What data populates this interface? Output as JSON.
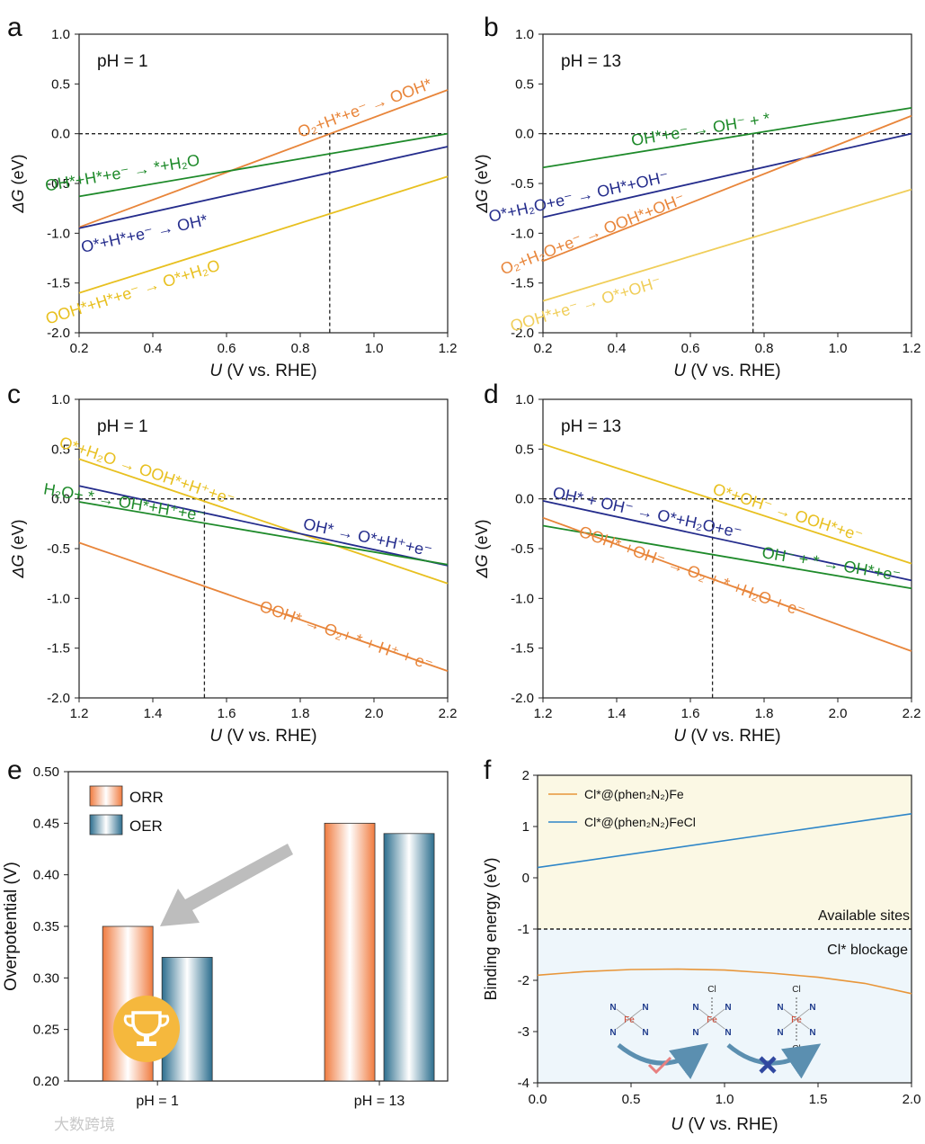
{
  "figure": {
    "watermark": "大数跨境",
    "panels": [
      {
        "id": "a",
        "letter": "a",
        "annotation": "pH = 1",
        "xlabel_italic": "U",
        "xlabel_rest": " (V vs. RHE)",
        "ylabel_italic": "ΔG",
        "ylabel_rest": " (eV)",
        "xlim": [
          0.2,
          1.2
        ],
        "ylim": [
          -2.0,
          1.0
        ],
        "xticks": [
          "0.2",
          "0.4",
          "0.6",
          "0.8",
          "1.0",
          "1.2"
        ],
        "yticks": [
          "-2.0",
          "-1.5",
          "-1.0",
          "-0.5",
          "0.0",
          "0.5",
          "1.0"
        ],
        "hline": 0.0,
        "vline": 0.88,
        "series": [
          {
            "label": "O₂+H*+e⁻ → OOH*",
            "color": "#E8853A",
            "x": [
              0.2,
              1.2
            ],
            "y": [
              -0.94,
              0.44
            ]
          },
          {
            "label": "OH*+H*+e⁻ → *+H₂O",
            "color": "#1E8A2A",
            "x": [
              0.2,
              1.2
            ],
            "y": [
              -0.63,
              0.0
            ]
          },
          {
            "label": "O*+H*+e⁻ → OH*",
            "color": "#242C8C",
            "x": [
              0.2,
              1.2
            ],
            "y": [
              -0.95,
              -0.13
            ]
          },
          {
            "label": "OOH*+H*+e⁻ → O*+H₂O",
            "color": "#E8C020",
            "x": [
              0.2,
              1.2
            ],
            "y": [
              -1.6,
              -0.43
            ]
          }
        ]
      },
      {
        "id": "b",
        "letter": "b",
        "annotation": "pH = 13",
        "xlabel_italic": "U",
        "xlabel_rest": " (V vs. RHE)",
        "ylabel_italic": "ΔG",
        "ylabel_rest": " (eV)",
        "xlim": [
          0.2,
          1.2
        ],
        "ylim": [
          -2.0,
          1.0
        ],
        "xticks": [
          "0.2",
          "0.4",
          "0.6",
          "0.8",
          "1.0",
          "1.2"
        ],
        "yticks": [
          "-2.0",
          "-1.5",
          "-1.0",
          "-0.5",
          "0.0",
          "0.5",
          "1.0"
        ],
        "hline": 0.0,
        "vline": 0.77,
        "series": [
          {
            "label": "OH*+e⁻ → OH⁻ + *",
            "color": "#1E8A2A",
            "x": [
              0.2,
              1.2
            ],
            "y": [
              -0.34,
              0.26
            ]
          },
          {
            "label": "O*+H₂O+e⁻ → OH*+OH⁻",
            "color": "#242C8C",
            "x": [
              0.2,
              1.2
            ],
            "y": [
              -0.84,
              0.0
            ]
          },
          {
            "label": "O₂+H₂O+e⁻ → OOH*+OH⁻",
            "color": "#E8853A",
            "x": [
              0.2,
              1.2
            ],
            "y": [
              -1.28,
              0.18
            ]
          },
          {
            "label": "OOH*+e⁻ → O*+OH⁻",
            "color": "#F0CE5A",
            "x": [
              0.2,
              1.2
            ],
            "y": [
              -1.68,
              -0.56
            ]
          }
        ]
      },
      {
        "id": "c",
        "letter": "c",
        "annotation": "pH = 1",
        "xlabel_italic": "U",
        "xlabel_rest": " (V vs. RHE)",
        "ylabel_italic": "ΔG",
        "ylabel_rest": " (eV)",
        "xlim": [
          1.2,
          2.2
        ],
        "ylim": [
          -2.0,
          1.0
        ],
        "xticks": [
          "1.2",
          "1.4",
          "1.6",
          "1.8",
          "2.0",
          "2.2"
        ],
        "yticks": [
          "-2.0",
          "-1.5",
          "-1.0",
          "-0.5",
          "0.0",
          "0.5",
          "1.0"
        ],
        "hline": 0.0,
        "vline": 1.54,
        "series": [
          {
            "label": "O*+H₂O → OOH*+H⁺+e⁻",
            "color": "#E8C020",
            "x": [
              1.2,
              2.2
            ],
            "y": [
              0.4,
              -0.85
            ]
          },
          {
            "label": "OH* → O*+H⁺+e⁻",
            "color": "#242C8C",
            "x": [
              1.2,
              2.2
            ],
            "y": [
              0.13,
              -0.67
            ]
          },
          {
            "label": "H₂O+ * → OH*+H⁺+e⁻",
            "color": "#1E8A2A",
            "x": [
              1.2,
              2.2
            ],
            "y": [
              -0.03,
              -0.66
            ]
          },
          {
            "label": "OOH* → O₂+ * + H⁺ + e⁻",
            "color": "#E8853A",
            "x": [
              1.2,
              2.2
            ],
            "y": [
              -0.44,
              -1.73
            ]
          }
        ]
      },
      {
        "id": "d",
        "letter": "d",
        "annotation": "pH = 13",
        "xlabel_italic": "U",
        "xlabel_rest": " (V vs. RHE)",
        "ylabel_italic": "ΔG",
        "ylabel_rest": " (eV)",
        "xlim": [
          1.2,
          2.2
        ],
        "ylim": [
          -2.0,
          1.0
        ],
        "xticks": [
          "1.2",
          "1.4",
          "1.6",
          "1.8",
          "2.0",
          "2.2"
        ],
        "yticks": [
          "-2.0",
          "-1.5",
          "-1.0",
          "-0.5",
          "0.0",
          "0.5",
          "1.0"
        ],
        "hline": 0.0,
        "vline": 1.66,
        "series": [
          {
            "label": "O*+OH⁻ → OOH*+e⁻",
            "color": "#E8C020",
            "x": [
              1.2,
              2.2
            ],
            "y": [
              0.55,
              -0.65
            ]
          },
          {
            "label": "OH* + OH⁻ → O*+H₂O+e⁻",
            "color": "#242C8C",
            "x": [
              1.2,
              2.2
            ],
            "y": [
              -0.02,
              -0.82
            ]
          },
          {
            "label": "OH⁻ + * → OH*+e⁻",
            "color": "#1E8A2A",
            "x": [
              1.2,
              2.2
            ],
            "y": [
              -0.27,
              -0.9
            ]
          },
          {
            "label": "OOH* +OH⁻ → O₂ + * +H₂O + e⁻",
            "color": "#E8853A",
            "x": [
              1.2,
              2.2
            ],
            "y": [
              -0.19,
              -1.53
            ]
          }
        ]
      },
      {
        "id": "e",
        "letter": "e",
        "ylabel": "Overpotential (V)",
        "ylim": [
          0.2,
          0.5
        ],
        "yticks": [
          "0.20",
          "0.25",
          "0.30",
          "0.35",
          "0.40",
          "0.45",
          "0.50"
        ],
        "categories": [
          "pH = 1",
          "pH = 13"
        ],
        "legend": [
          "ORR",
          "OER"
        ],
        "series": [
          {
            "name": "ORR",
            "color": "#F07B3F",
            "values": [
              0.35,
              0.45
            ]
          },
          {
            "name": "OER",
            "color": "#2C6E8E",
            "values": [
              0.32,
              0.44
            ]
          }
        ],
        "highlight_icon": "trophy-icon",
        "arrow_icon": "arrow-icon"
      },
      {
        "id": "f",
        "letter": "f",
        "xlabel_italic": "U",
        "xlabel_rest": " (V vs. RHE)",
        "ylabel": "Binding energy (eV)",
        "xlim": [
          0.0,
          2.0
        ],
        "ylim": [
          -4,
          2
        ],
        "xticks": [
          "0.0",
          "0.5",
          "1.0",
          "1.5",
          "2.0"
        ],
        "yticks": [
          "-4",
          "-3",
          "-2",
          "-1",
          "0",
          "1",
          "2"
        ],
        "hline": -1.0,
        "region_top_color": "#FBF8E4",
        "region_bottom_color": "#EEF6FB",
        "region_top_label": "Available sites",
        "region_bottom_label": "Cl* blockage",
        "legend": [
          "Cl*@(phen₂N₂)Fe",
          "Cl*@(phen₂N₂)FeCl"
        ],
        "series": [
          {
            "name": "Cl*@(phen₂N₂)Fe",
            "color": "#E8963A",
            "x": [
              0.0,
              0.25,
              0.5,
              0.75,
              1.0,
              1.25,
              1.5,
              1.75,
              2.0
            ],
            "y": [
              -1.9,
              -1.83,
              -1.79,
              -1.78,
              -1.8,
              -1.86,
              -1.94,
              -2.06,
              -2.26
            ]
          },
          {
            "name": "Cl*@(phen₂N₂)FeCl",
            "color": "#2E86C8",
            "x": [
              0.0,
              2.0
            ],
            "y": [
              0.2,
              1.25
            ]
          }
        ],
        "inset_atoms": {
          "metal": "Fe",
          "ligand": "N",
          "halide": "Cl"
        },
        "inset_marks": [
          "check-icon",
          "cross-icon"
        ]
      }
    ]
  }
}
